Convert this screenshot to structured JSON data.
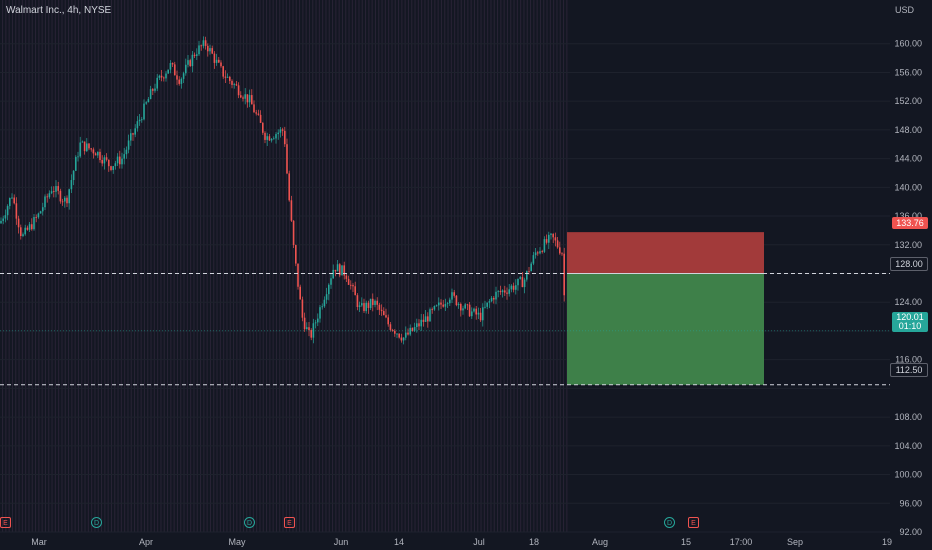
{
  "chart": {
    "title": "Walmart Inc., 4h, NYSE",
    "currency": "USD",
    "y_ticks": [
      "160.00",
      "156.00",
      "152.00",
      "148.00",
      "144.00",
      "140.00",
      "136.00",
      "132.00",
      "124.00",
      "116.00",
      "108.00",
      "104.00",
      "100.00",
      "96.00",
      "92.00"
    ],
    "x_ticks": [
      "Mar",
      "Apr",
      "May",
      "Jun",
      "14",
      "Jul",
      "18",
      "Aug",
      "15",
      "17:00",
      "Sep",
      "19"
    ],
    "labels": {
      "stop": "133.76",
      "entry": "128.00",
      "current": "120.01",
      "countdown": "01:10",
      "target": "112.50"
    },
    "colors": {
      "background": "#131722",
      "up": "#26a69a",
      "down": "#ef5350",
      "stop_zone": "#a23a3a",
      "target_zone": "#3e8049"
    },
    "events": [
      {
        "type": "E",
        "icon": "earnings-icon"
      },
      {
        "type": "D",
        "icon": "dividend-icon"
      },
      {
        "type": "D",
        "icon": "dividend-icon"
      },
      {
        "type": "E",
        "icon": "earnings-icon"
      },
      {
        "type": "D",
        "icon": "dividend-icon"
      },
      {
        "type": "E",
        "icon": "earnings-icon"
      }
    ]
  },
  "chart_data": {
    "type": "candlestick",
    "symbol": "WMT",
    "interval": "4h",
    "ylim": [
      92,
      164
    ],
    "path_prices": [
      [
        0,
        135
      ],
      [
        12,
        139
      ],
      [
        22,
        133
      ],
      [
        38,
        136
      ],
      [
        52,
        140
      ],
      [
        66,
        138
      ],
      [
        80,
        146
      ],
      [
        96,
        145
      ],
      [
        110,
        143
      ],
      [
        122,
        144
      ],
      [
        138,
        149
      ],
      [
        154,
        154
      ],
      [
        170,
        157
      ],
      [
        180,
        155
      ],
      [
        196,
        159
      ],
      [
        206,
        160
      ],
      [
        222,
        156
      ],
      [
        236,
        154
      ],
      [
        250,
        152
      ],
      [
        266,
        147
      ],
      [
        284,
        148
      ],
      [
        288,
        140
      ],
      [
        294,
        131
      ],
      [
        302,
        122
      ],
      [
        310,
        119
      ],
      [
        322,
        124
      ],
      [
        334,
        129
      ],
      [
        346,
        128
      ],
      [
        360,
        123
      ],
      [
        374,
        124
      ],
      [
        388,
        121
      ],
      [
        404,
        119
      ],
      [
        420,
        121
      ],
      [
        436,
        123
      ],
      [
        450,
        125
      ],
      [
        466,
        123
      ],
      [
        480,
        122
      ],
      [
        494,
        125
      ],
      [
        510,
        126
      ],
      [
        524,
        127
      ],
      [
        536,
        131
      ],
      [
        552,
        133
      ],
      [
        562,
        131
      ],
      [
        566,
        120
      ]
    ],
    "risk_reward": {
      "stop": 133.76,
      "entry": 128.0,
      "target": 112.5,
      "current": 120.01
    }
  }
}
